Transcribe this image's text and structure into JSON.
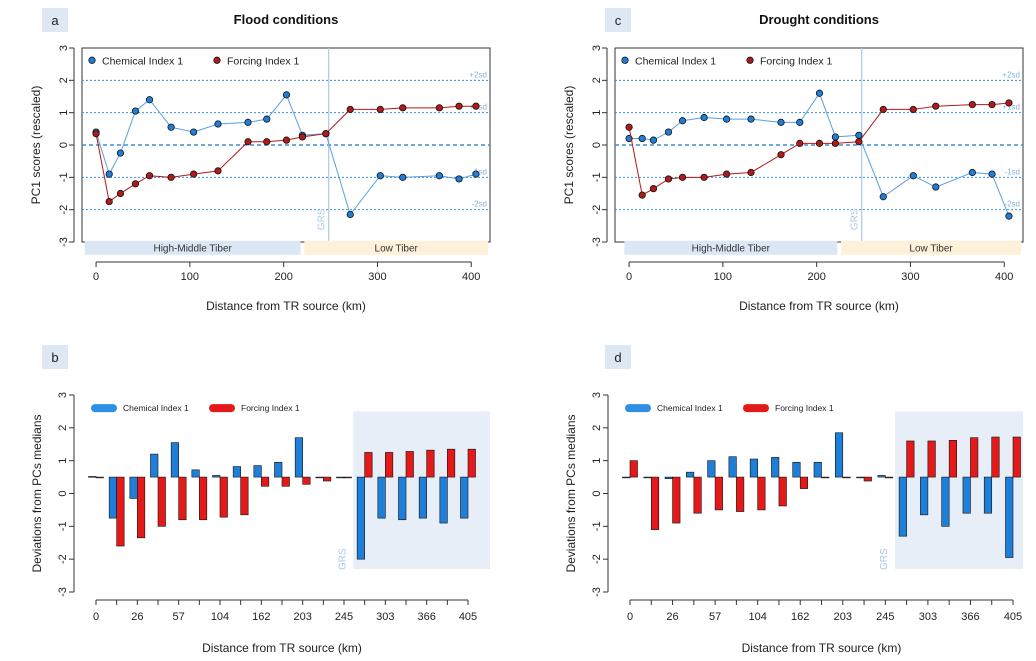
{
  "colors": {
    "chem": "#1f7fd8",
    "force": "#b01a1a",
    "forceBar": "#e41a1a",
    "ref": "#3b8fd9",
    "grs": "#a9c8ea",
    "hm": "#dbe7f4",
    "low": "#fdf1d9",
    "shade": "#e7eef8",
    "tag": "#dde8f4"
  },
  "chart_data": [
    {
      "id": "a",
      "type": "line",
      "title": "Flood conditions",
      "xlabel": "Distance from TR source (km)",
      "ylabel": "PC1 scores (rescaled)",
      "xlim": [
        -15,
        420
      ],
      "ylim": [
        -3,
        3
      ],
      "xticks": [
        0,
        100,
        200,
        300,
        400
      ],
      "yticks": [
        -3,
        -2,
        -1,
        0,
        1,
        2,
        3
      ],
      "ref_lines": [
        {
          "y": 2,
          "label": "+2sd"
        },
        {
          "y": 1,
          "label": "+1sd"
        },
        {
          "y": 0,
          "label": ""
        },
        {
          "y": -1,
          "label": "-1sd"
        },
        {
          "y": -2,
          "label": "-2sd"
        }
      ],
      "grs": {
        "x": 248,
        "label": "GRS"
      },
      "regions": [
        {
          "label": "High-Middle Tiber",
          "x": [
            -12,
            218
          ]
        },
        {
          "label": "Low Tiber",
          "x": [
            222,
            418
          ]
        }
      ],
      "x": [
        0,
        14,
        26,
        42,
        57,
        80,
        104,
        130,
        162,
        182,
        203,
        220,
        245,
        271,
        303,
        327,
        366,
        387,
        405
      ],
      "series": [
        {
          "name": "Chemical Index 1",
          "values": [
            0.4,
            -0.9,
            -0.25,
            1.05,
            1.4,
            0.55,
            0.4,
            0.65,
            0.7,
            0.8,
            1.55,
            0.3,
            0.35,
            -2.15,
            -0.95,
            -1.0,
            -0.95,
            -1.05,
            -0.9
          ]
        },
        {
          "name": "Forcing Index 1",
          "values": [
            0.35,
            -1.75,
            -1.5,
            -1.2,
            -0.95,
            -1.0,
            -0.9,
            -0.8,
            0.1,
            0.1,
            0.15,
            0.25,
            0.35,
            1.1,
            1.1,
            1.15,
            1.15,
            1.2,
            1.2
          ]
        }
      ]
    },
    {
      "id": "c",
      "type": "line",
      "title": "Drought conditions",
      "xlabel": "Distance from TR source (km)",
      "ylabel": "PC1 scores (rescaled)",
      "xlim": [
        -15,
        420
      ],
      "ylim": [
        -3,
        3
      ],
      "xticks": [
        0,
        100,
        200,
        300,
        400
      ],
      "yticks": [
        -3,
        -2,
        -1,
        0,
        1,
        2,
        3
      ],
      "ref_lines": [
        {
          "y": 2,
          "label": "+2sd"
        },
        {
          "y": 1,
          "label": "+1sd"
        },
        {
          "y": 0,
          "label": ""
        },
        {
          "y": -1,
          "label": "-1sd"
        },
        {
          "y": -2,
          "label": "-2sd"
        }
      ],
      "grs": {
        "x": 248,
        "label": "GRS"
      },
      "regions": [
        {
          "label": "High-Middle Tiber",
          "x": [
            -5,
            222
          ]
        },
        {
          "label": "Low Tiber",
          "x": [
            226,
            418
          ]
        }
      ],
      "x": [
        0,
        14,
        26,
        42,
        57,
        80,
        104,
        130,
        162,
        182,
        203,
        220,
        245,
        271,
        303,
        327,
        366,
        387,
        405
      ],
      "series": [
        {
          "name": "Chemical Index 1",
          "values": [
            0.2,
            0.2,
            0.15,
            0.4,
            0.75,
            0.85,
            0.8,
            0.8,
            0.7,
            0.7,
            1.6,
            0.25,
            0.3,
            -1.6,
            -0.95,
            -1.3,
            -0.85,
            -0.9,
            -2.2
          ]
        },
        {
          "name": "Forcing Index 1",
          "values": [
            0.55,
            -1.55,
            -1.35,
            -1.05,
            -1.0,
            -1.0,
            -0.9,
            -0.85,
            -0.3,
            0.05,
            0.05,
            0.05,
            0.1,
            1.1,
            1.1,
            1.2,
            1.25,
            1.25,
            1.3
          ]
        }
      ]
    },
    {
      "id": "b",
      "type": "bar",
      "xlabel": "Distance from TR source (km)",
      "ylabel": "Deviations from PCs medians",
      "ylim": [
        -3,
        3
      ],
      "yticks": [
        -3,
        -2,
        -1,
        0,
        1,
        2,
        3
      ],
      "baseline": 0.5,
      "categories": [
        "0",
        "",
        "26",
        "",
        "57",
        "",
        "104",
        "",
        "162",
        "",
        "203",
        "",
        "245",
        "",
        "303",
        "",
        "366",
        "",
        "405"
      ],
      "grs": {
        "after_index": 12,
        "label": "GRS"
      },
      "series": [
        {
          "name": "Chemical Index 1",
          "values": [
            0.52,
            -0.75,
            -0.15,
            1.2,
            1.55,
            0.72,
            0.55,
            0.82,
            0.85,
            0.95,
            1.7,
            0.5,
            0.5,
            -2.0,
            -0.75,
            -0.8,
            -0.75,
            -0.9,
            -0.75
          ]
        },
        {
          "name": "Forcing Index 1",
          "values": [
            0.48,
            -1.6,
            -1.35,
            -1.0,
            -0.8,
            -0.8,
            -0.72,
            -0.65,
            0.22,
            0.22,
            0.28,
            0.38,
            0.5,
            1.25,
            1.25,
            1.28,
            1.32,
            1.35,
            1.35
          ]
        }
      ]
    },
    {
      "id": "d",
      "type": "bar",
      "xlabel": "Distance from TR source (km)",
      "ylabel": "Deviations from PCs medians",
      "ylim": [
        -3,
        3
      ],
      "yticks": [
        -3,
        -2,
        -1,
        0,
        1,
        2,
        3
      ],
      "baseline": 0.5,
      "categories": [
        "0",
        "",
        "26",
        "",
        "57",
        "",
        "104",
        "",
        "162",
        "",
        "203",
        "",
        "245",
        "",
        "303",
        "",
        "366",
        "",
        "405"
      ],
      "grs": {
        "after_index": 12,
        "label": "GRS"
      },
      "series": [
        {
          "name": "Chemical Index 1",
          "values": [
            0.5,
            0.5,
            0.45,
            0.65,
            1.0,
            1.12,
            1.05,
            1.1,
            0.95,
            0.95,
            1.85,
            0.5,
            0.55,
            -1.3,
            -0.65,
            -1.0,
            -0.6,
            -0.6,
            -1.95
          ]
        },
        {
          "name": "Forcing Index 1",
          "values": [
            1.0,
            -1.1,
            -0.9,
            -0.6,
            -0.5,
            -0.55,
            -0.5,
            -0.38,
            0.15,
            0.5,
            0.5,
            0.38,
            0.5,
            1.6,
            1.6,
            1.62,
            1.7,
            1.72,
            1.72
          ]
        }
      ]
    }
  ]
}
